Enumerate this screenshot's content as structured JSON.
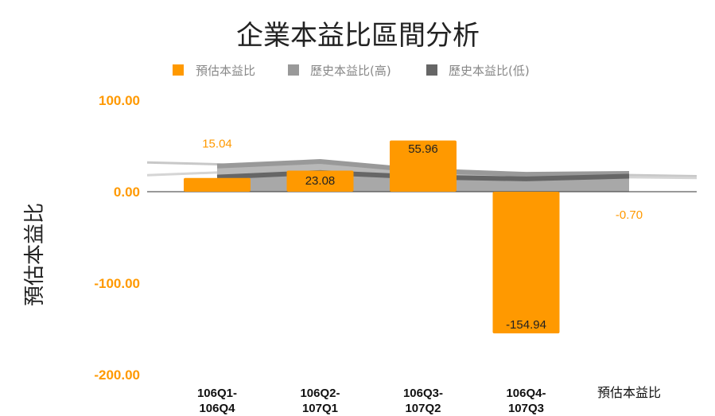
{
  "chart_data": {
    "type": "bar",
    "title": "企業本益比區間分析",
    "xlabel": "",
    "ylabel": "預估本益比",
    "ylim": [
      -200,
      100
    ],
    "yticks": [
      "100.00",
      "0.00",
      "-100.00",
      "-200.00"
    ],
    "categories": [
      "106Q1-106Q4",
      "106Q2-107Q1",
      "106Q3-107Q2",
      "106Q4-107Q3",
      "預估本益比"
    ],
    "category_labels": [
      [
        "106Q1-",
        "106Q4"
      ],
      [
        "106Q2-",
        "107Q1"
      ],
      [
        "106Q3-",
        "107Q2"
      ],
      [
        "106Q4-",
        "107Q3"
      ],
      [
        "預估本益比"
      ]
    ],
    "legend_position": "top",
    "series": [
      {
        "name": "預估本益比",
        "type": "bar",
        "color": "#ff9900",
        "values": [
          15.04,
          23.08,
          55.96,
          -154.94,
          -0.7
        ],
        "labels": [
          "15.04",
          "23.08",
          "55.96",
          "-154.94",
          "-0.70"
        ]
      },
      {
        "name": "歷史本益比(高)",
        "type": "area",
        "color": "#999999",
        "values": [
          28,
          33,
          23,
          19,
          20
        ]
      },
      {
        "name": "歷史本益比(低)",
        "type": "area",
        "color": "#666666",
        "values": [
          16,
          21,
          16,
          14,
          17
        ]
      }
    ],
    "background_lines": [
      {
        "color": "#c8c8c8",
        "values": [
          32,
          30,
          24,
          20,
          20,
          17
        ]
      },
      {
        "color": "#d5d5d5",
        "values": [
          18,
          21,
          20,
          18,
          17,
          15
        ]
      }
    ]
  }
}
